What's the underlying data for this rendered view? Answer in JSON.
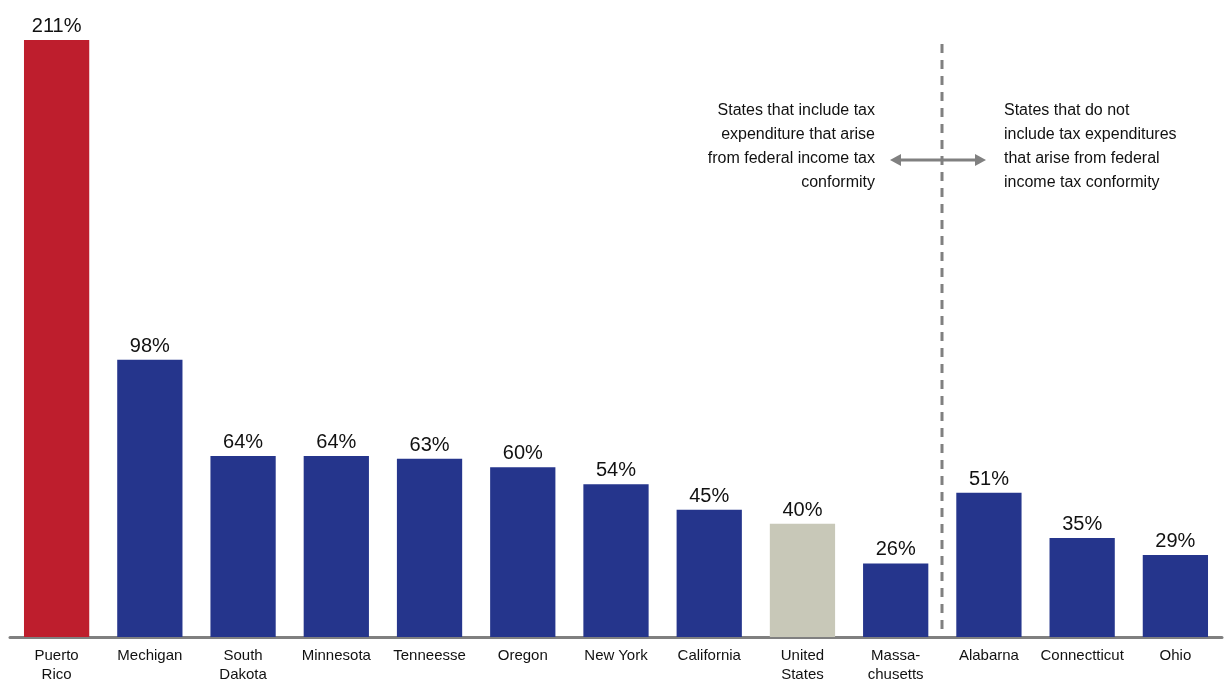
{
  "chart_data": {
    "type": "bar",
    "categories": [
      "Puerto Rico",
      "Mechigan",
      "South Dakota",
      "Minnesota",
      "Tenneesse",
      "Oregon",
      "New York",
      "California",
      "United States",
      "Massa-chusetts",
      "Alabarna",
      "Connectticut",
      "Ohio"
    ],
    "values": [
      211,
      98,
      64,
      64,
      63,
      60,
      54,
      45,
      40,
      26,
      51,
      35,
      29
    ],
    "value_labels": [
      "211%",
      "98%",
      "64%",
      "64%",
      "63%",
      "60%",
      "54%",
      "45%",
      "40%",
      "26%",
      "51%",
      "35%",
      "29%"
    ],
    "colors": [
      "#be1e2d",
      "#25358c",
      "#25358c",
      "#25358c",
      "#25358c",
      "#25358c",
      "#25358c",
      "#25358c",
      "#c8c8b8",
      "#25358c",
      "#25358c",
      "#25358c",
      "#25358c"
    ],
    "annotations": [
      "States that include tax expenditure that arise from federal income tax conformity",
      "States that do not include tax expenditures that arise from federal income tax conformity"
    ]
  }
}
